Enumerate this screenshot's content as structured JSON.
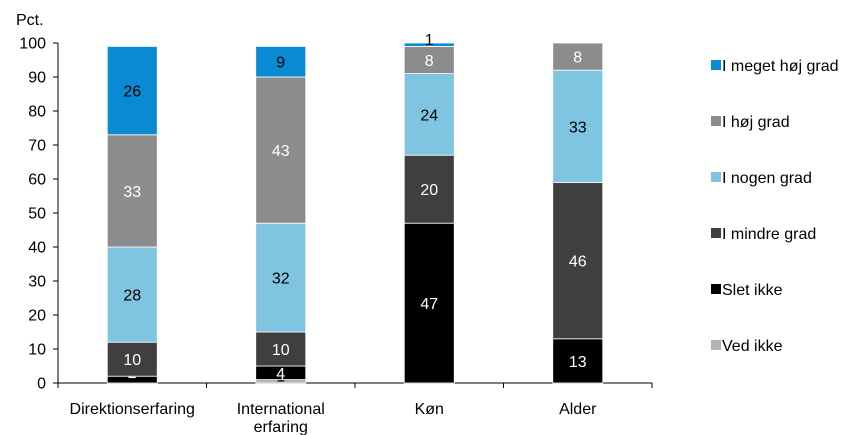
{
  "chart_data": {
    "type": "bar",
    "stacked": true,
    "ylabel": "Pct.",
    "ylim": [
      0,
      100
    ],
    "yticks": [
      0,
      10,
      20,
      30,
      40,
      50,
      60,
      70,
      80,
      90,
      100
    ],
    "grid": false,
    "legend_position": "right",
    "categories": [
      [
        "Direktionserfaring"
      ],
      [
        "International",
        "erfaring"
      ],
      [
        "Køn"
      ],
      [
        "Alder"
      ]
    ],
    "series": [
      {
        "name": "Ved ikke",
        "color": "#b3b3b3",
        "label_color": "#000000",
        "values": [
          0,
          1,
          0,
          0
        ]
      },
      {
        "name": "Slet ikke",
        "color": "#000000",
        "label_color": "#ffffff",
        "values": [
          2,
          4,
          47,
          13
        ]
      },
      {
        "name": "I mindre grad",
        "color": "#3f3f3f",
        "label_color": "#ffffff",
        "values": [
          10,
          10,
          20,
          46
        ]
      },
      {
        "name": "I nogen grad",
        "color": "#7fc4e1",
        "label_color": "#000000",
        "values": [
          28,
          32,
          24,
          33
        ]
      },
      {
        "name": "I høj grad",
        "color": "#8c8c8c",
        "label_color": "#ffffff",
        "values": [
          33,
          43,
          8,
          8
        ]
      },
      {
        "name": "I meget høj grad",
        "color": "#0a8ad2",
        "label_color": "#000000",
        "values": [
          26,
          9,
          1,
          0
        ]
      }
    ]
  }
}
